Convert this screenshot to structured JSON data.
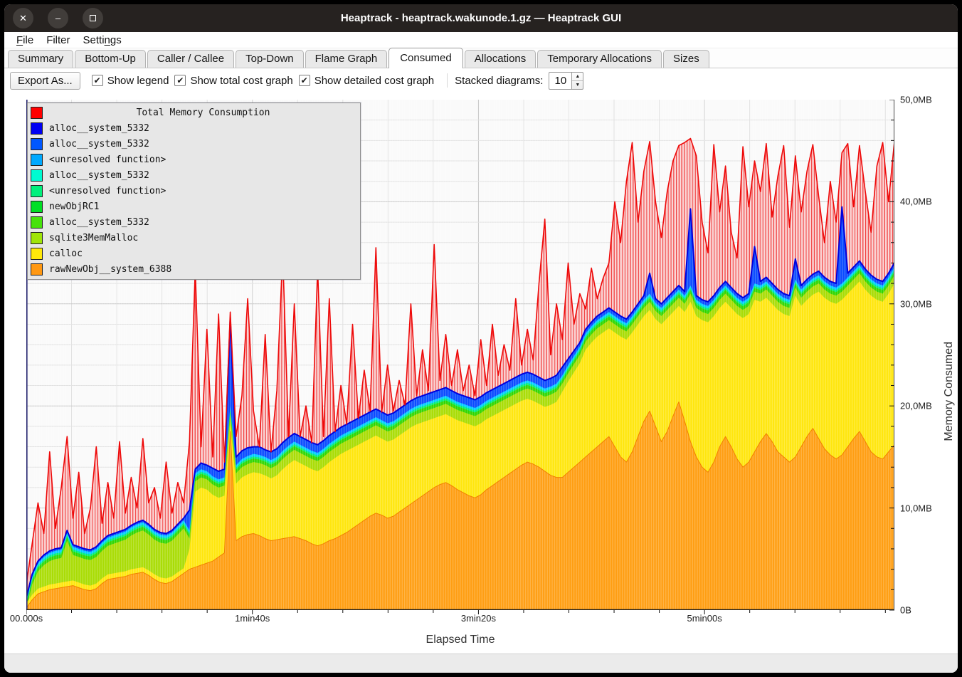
{
  "window": {
    "title": "Heaptrack - heaptrack.wakunode.1.gz — Heaptrack GUI",
    "controls": {
      "close": "✕",
      "minimize": "–",
      "maximize": "▢"
    }
  },
  "menu": {
    "items": [
      {
        "label": "File",
        "accel": "F"
      },
      {
        "label": "Filter",
        "accel": ""
      },
      {
        "label": "Settings",
        "accel": "n"
      }
    ]
  },
  "tabs": {
    "active": "Consumed",
    "items": [
      "Summary",
      "Bottom-Up",
      "Caller / Callee",
      "Top-Down",
      "Flame Graph",
      "Consumed",
      "Allocations",
      "Temporary Allocations",
      "Sizes"
    ]
  },
  "toolbar": {
    "export_label": "Export As...",
    "checkboxes": [
      {
        "label": "Show legend",
        "checked": true
      },
      {
        "label": "Show total cost graph",
        "checked": true
      },
      {
        "label": "Show detailed cost graph",
        "checked": true
      }
    ],
    "stacked_label": "Stacked diagrams:",
    "stacked_value": "10",
    "check_glyph": "✔"
  },
  "legend": {
    "title": {
      "label": "Total Memory Consumption",
      "color": "#ff0000"
    },
    "items": [
      {
        "label": "alloc__system_5332",
        "color": "#0000f2"
      },
      {
        "label": "alloc__system_5332",
        "color": "#0057ff"
      },
      {
        "label": "<unresolved function>",
        "color": "#00a9ff"
      },
      {
        "label": "alloc__system_5332",
        "color": "#00fbd1"
      },
      {
        "label": "<unresolved function>",
        "color": "#00f07c"
      },
      {
        "label": "newObjRC1",
        "color": "#00df25"
      },
      {
        "label": "alloc__system_5332",
        "color": "#47e20c"
      },
      {
        "label": "sqlite3MemMalloc",
        "color": "#a0e509"
      },
      {
        "label": "calloc",
        "color": "#ffe90b"
      },
      {
        "label": "rawNewObj__system_6388",
        "color": "#ff9812"
      }
    ]
  },
  "chart_data": {
    "type": "area",
    "stacked": true,
    "title": "Total Memory Consumption",
    "xlabel": "Elapsed Time",
    "ylabel": "Memory Consumed",
    "unit": "MB",
    "ylim": [
      0,
      50
    ],
    "x_range_seconds": [
      0,
      384
    ],
    "grid": true,
    "legend_position": "top-left",
    "y_ticks": [
      {
        "label": "0B",
        "value": 0
      },
      {
        "label": "10,0MB",
        "value": 10
      },
      {
        "label": "20,0MB",
        "value": 20
      },
      {
        "label": "30,0MB",
        "value": 30
      },
      {
        "label": "40,0MB",
        "value": 40
      },
      {
        "label": "50,0MB",
        "value": 50
      }
    ],
    "x_ticks": [
      {
        "label": "00.000s",
        "seconds": 0
      },
      {
        "label": "1min40s",
        "seconds": 100
      },
      {
        "label": "3min20s",
        "seconds": 200
      },
      {
        "label": "5min00s",
        "seconds": 300
      }
    ],
    "x_minor_step_seconds": 20,
    "y_minor_step_mb": 2,
    "note": "values are cumulative stacked MB sampled at 150 even time steps, estimated from pixels",
    "thin_bands": [
      {
        "name": "alloc__system_5332",
        "color": "#2fd600",
        "offset_above_sqlite": 0.35
      },
      {
        "name": "newObjRC1 / <unresolved function>",
        "color": "#00ee77",
        "offset_above_sqlite": 0.55
      },
      {
        "name": "<unresolved function> / alloc__system_5332",
        "color": "#00ccff",
        "offset_above_sqlite": 0.8
      }
    ],
    "series": [
      {
        "name": "Total Memory Consumption",
        "role": "total",
        "color": "#ee0909",
        "fill": "hatch-red",
        "values": [
          2.5,
          6.5,
          10.5,
          7.5,
          15.5,
          8.0,
          12.0,
          17.0,
          9.0,
          13.5,
          7.5,
          10.0,
          16.0,
          8.5,
          12.5,
          9.0,
          16.5,
          9.5,
          13.0,
          10.0,
          16.8,
          10.5,
          12.0,
          9.0,
          14.5,
          9.5,
          12.5,
          10.5,
          16.5,
          33.4,
          16.0,
          27.5,
          15.0,
          29.0,
          14.5,
          29.2,
          17.0,
          21.0,
          30.5,
          19.5,
          15.5,
          27.0,
          15.0,
          21.5,
          35.0,
          17.0,
          30.0,
          16.5,
          20.0,
          16.0,
          33.5,
          17.0,
          30.5,
          17.5,
          22.0,
          18.0,
          28.0,
          18.5,
          23.5,
          19.5,
          35.5,
          19.0,
          24.0,
          19.5,
          22.5,
          20.0,
          30.0,
          21.0,
          25.5,
          21.5,
          35.8,
          22.5,
          27.0,
          22.0,
          25.5,
          21.5,
          24.0,
          21.0,
          26.5,
          22.0,
          28.0,
          23.0,
          26.0,
          23.5,
          30.5,
          24.0,
          27.5,
          24.5,
          32.0,
          38.3,
          25.0,
          30.0,
          26.5,
          34.0,
          28.0,
          31.0,
          29.5,
          33.5,
          30.5,
          32.5,
          34.0,
          40.0,
          36.0,
          42.0,
          45.8,
          38.0,
          43.0,
          45.9,
          40.0,
          36.5,
          41.0,
          44.0,
          45.5,
          45.8,
          46.2,
          44.5,
          38.0,
          35.0,
          45.6,
          39.0,
          43.5,
          37.0,
          34.5,
          45.4,
          39.5,
          44.0,
          41.0,
          45.7,
          38.5,
          42.5,
          45.5,
          37.5,
          44.5,
          39.0,
          43.0,
          45.6,
          40.5,
          36.0,
          42.0,
          38.0,
          44.8,
          45.7,
          39.5,
          45.5,
          41.0,
          37.0,
          43.5,
          45.8,
          40.0,
          45.9
        ]
      },
      {
        "name": "alloc__system_5332 (stack top, blue)",
        "role": "stack-top",
        "color": "#0a4bff",
        "stroke": "#0000dd",
        "values": [
          1.2,
          3.5,
          4.8,
          5.4,
          5.8,
          6.0,
          6.1,
          7.8,
          6.4,
          6.2,
          6.0,
          5.9,
          6.2,
          6.8,
          7.3,
          7.5,
          7.7,
          7.9,
          8.3,
          8.6,
          8.8,
          8.4,
          7.9,
          7.6,
          7.5,
          7.8,
          8.4,
          9.0,
          9.8,
          13.8,
          14.4,
          14.2,
          13.9,
          13.6,
          13.8,
          28.6,
          15.0,
          15.6,
          15.9,
          16.0,
          16.0,
          15.7,
          15.5,
          15.8,
          16.4,
          16.9,
          17.3,
          17.0,
          16.7,
          16.4,
          16.2,
          16.6,
          17.1,
          17.5,
          17.9,
          18.2,
          18.5,
          18.8,
          19.1,
          19.4,
          19.7,
          19.4,
          19.1,
          19.3,
          19.7,
          20.1,
          20.5,
          20.8,
          21.0,
          21.2,
          21.4,
          21.6,
          21.8,
          21.5,
          21.2,
          21.0,
          20.8,
          20.6,
          20.9,
          21.3,
          21.6,
          21.9,
          22.2,
          22.5,
          22.8,
          23.1,
          23.3,
          23.1,
          22.8,
          22.5,
          22.7,
          23.0,
          23.8,
          24.6,
          25.4,
          26.2,
          27.5,
          28.2,
          28.8,
          29.2,
          29.6,
          29.2,
          28.8,
          28.5,
          29.2,
          30.0,
          30.8,
          33.0,
          30.5,
          30.0,
          30.6,
          31.2,
          31.8,
          31.2,
          39.3,
          30.8,
          30.4,
          30.2,
          30.8,
          31.6,
          32.2,
          31.6,
          31.0,
          30.6,
          31.0,
          35.6,
          32.2,
          32.6,
          32.0,
          31.4,
          31.0,
          30.8,
          34.4,
          31.8,
          32.4,
          32.9,
          33.2,
          32.6,
          32.2,
          32.0,
          39.5,
          33.0,
          33.6,
          34.2,
          33.4,
          32.8,
          32.4,
          32.2,
          33.0,
          34.0
        ]
      },
      {
        "name": "sqlite3MemMalloc (top)",
        "role": "layer",
        "color": "#a9dc04",
        "values": [
          0.2,
          2.5,
          3.8,
          4.4,
          4.8,
          5.0,
          5.1,
          6.8,
          5.4,
          5.2,
          5.0,
          4.9,
          5.2,
          5.8,
          6.3,
          6.5,
          6.7,
          6.9,
          7.3,
          7.6,
          7.8,
          7.4,
          6.9,
          6.6,
          6.5,
          6.8,
          7.4,
          8.0,
          7.0,
          12.6,
          13.0,
          12.8,
          12.3,
          12.0,
          12.2,
          19.2,
          13.4,
          14.0,
          14.3,
          14.5,
          14.4,
          14.2,
          13.9,
          14.2,
          14.8,
          15.3,
          15.7,
          15.4,
          15.1,
          14.8,
          14.6,
          15.0,
          15.5,
          15.9,
          16.3,
          16.6,
          16.9,
          17.2,
          17.5,
          17.8,
          18.1,
          17.8,
          17.5,
          17.7,
          18.1,
          18.5,
          18.9,
          19.2,
          19.4,
          19.6,
          19.8,
          20.0,
          20.2,
          19.9,
          19.6,
          19.4,
          19.2,
          19.0,
          19.3,
          19.7,
          20.0,
          20.3,
          20.6,
          20.9,
          21.2,
          21.5,
          21.7,
          21.5,
          21.2,
          20.9,
          21.1,
          21.4,
          22.2,
          23.2,
          24.1,
          25.0,
          26.3,
          27.0,
          27.6,
          28.0,
          28.4,
          28.0,
          27.6,
          27.3,
          28.0,
          28.8,
          29.6,
          30.2,
          29.3,
          28.8,
          29.4,
          30.0,
          30.6,
          30.0,
          31.0,
          29.6,
          29.2,
          29.0,
          29.6,
          30.4,
          31.0,
          30.4,
          29.8,
          29.4,
          29.8,
          31.2,
          31.0,
          31.4,
          30.8,
          30.2,
          29.8,
          29.6,
          31.6,
          30.6,
          31.2,
          31.7,
          32.0,
          31.4,
          31.0,
          30.8,
          31.2,
          31.8,
          32.4,
          33.0,
          32.2,
          31.6,
          31.2,
          31.0,
          31.8,
          32.8
        ]
      },
      {
        "name": "calloc (top)",
        "role": "layer",
        "color": "#ffe60d",
        "values": [
          0.7,
          1.5,
          2.1,
          2.3,
          2.5,
          2.6,
          2.7,
          2.8,
          2.9,
          2.7,
          2.5,
          2.4,
          2.6,
          3.1,
          3.5,
          3.6,
          3.7,
          3.8,
          4.0,
          4.1,
          4.2,
          3.9,
          3.5,
          3.2,
          3.1,
          3.3,
          3.7,
          4.1,
          6.0,
          11.6,
          12.0,
          11.8,
          11.3,
          11.0,
          11.2,
          18.2,
          12.4,
          13.0,
          13.3,
          13.5,
          13.4,
          13.2,
          12.9,
          13.2,
          13.8,
          14.3,
          14.7,
          14.4,
          14.1,
          13.8,
          13.6,
          14.0,
          14.5,
          14.9,
          15.3,
          15.6,
          15.9,
          16.2,
          16.5,
          16.8,
          17.1,
          16.8,
          16.5,
          16.7,
          17.1,
          17.5,
          17.9,
          18.2,
          18.4,
          18.6,
          18.8,
          19.0,
          19.2,
          18.9,
          18.6,
          18.4,
          18.2,
          18.0,
          18.3,
          18.7,
          19.0,
          19.3,
          19.6,
          19.9,
          20.2,
          20.5,
          20.7,
          20.5,
          20.2,
          19.9,
          20.1,
          20.4,
          21.4,
          22.4,
          23.3,
          24.2,
          25.5,
          26.2,
          26.8,
          27.2,
          27.6,
          27.2,
          26.8,
          26.5,
          27.2,
          28.0,
          28.8,
          29.4,
          28.5,
          28.0,
          28.6,
          29.2,
          29.8,
          29.2,
          30.2,
          28.8,
          28.4,
          28.2,
          28.8,
          29.6,
          30.2,
          29.6,
          29.0,
          28.6,
          29.0,
          30.4,
          30.2,
          30.6,
          30.0,
          29.4,
          29.0,
          28.8,
          30.8,
          29.8,
          30.4,
          30.9,
          31.2,
          30.6,
          30.2,
          30.0,
          30.4,
          31.0,
          31.6,
          32.2,
          31.4,
          30.8,
          30.4,
          30.2,
          31.0,
          32.0
        ]
      },
      {
        "name": "rawNewObj__system_6388 (top)",
        "role": "layer",
        "color": "#ff9e12",
        "stroke": "#f08000",
        "values": [
          0.2,
          1.0,
          1.6,
          1.8,
          2.0,
          2.1,
          2.2,
          2.3,
          2.4,
          2.2,
          2.0,
          1.9,
          2.1,
          2.6,
          3.0,
          3.1,
          3.2,
          3.3,
          3.5,
          3.6,
          3.7,
          3.4,
          3.0,
          2.7,
          2.6,
          2.8,
          3.2,
          3.6,
          4.0,
          4.2,
          4.4,
          4.6,
          4.8,
          5.2,
          5.6,
          17.5,
          6.8,
          7.2,
          7.4,
          7.5,
          7.3,
          7.0,
          6.8,
          6.9,
          7.0,
          7.1,
          7.2,
          7.0,
          6.8,
          6.5,
          6.3,
          6.5,
          6.8,
          7.0,
          7.3,
          7.6,
          8.0,
          8.4,
          8.8,
          9.2,
          9.5,
          9.3,
          9.0,
          9.2,
          9.6,
          10.0,
          10.4,
          10.8,
          11.2,
          11.6,
          12.0,
          12.3,
          12.5,
          12.2,
          11.8,
          11.5,
          11.2,
          11.0,
          11.3,
          11.8,
          12.2,
          12.6,
          13.0,
          13.4,
          13.8,
          14.2,
          14.5,
          14.3,
          14.0,
          13.6,
          13.2,
          13.0,
          13.0,
          13.5,
          14.0,
          14.5,
          15.0,
          15.5,
          16.0,
          16.5,
          17.0,
          16.0,
          15.0,
          14.5,
          15.5,
          17.0,
          18.5,
          19.5,
          18.0,
          16.5,
          17.5,
          19.0,
          20.4,
          18.5,
          16.5,
          15.0,
          14.0,
          13.5,
          14.5,
          16.0,
          17.0,
          16.0,
          14.8,
          14.0,
          14.5,
          15.5,
          16.5,
          17.3,
          16.5,
          15.5,
          15.0,
          14.5,
          15.0,
          16.0,
          17.0,
          17.8,
          16.8,
          15.8,
          15.2,
          14.8,
          15.2,
          16.0,
          16.8,
          17.5,
          16.5,
          15.5,
          15.0,
          14.8,
          15.5,
          16.2
        ]
      }
    ]
  },
  "axes": {
    "xlabel": "Elapsed Time",
    "ylabel": "Memory Consumed"
  }
}
